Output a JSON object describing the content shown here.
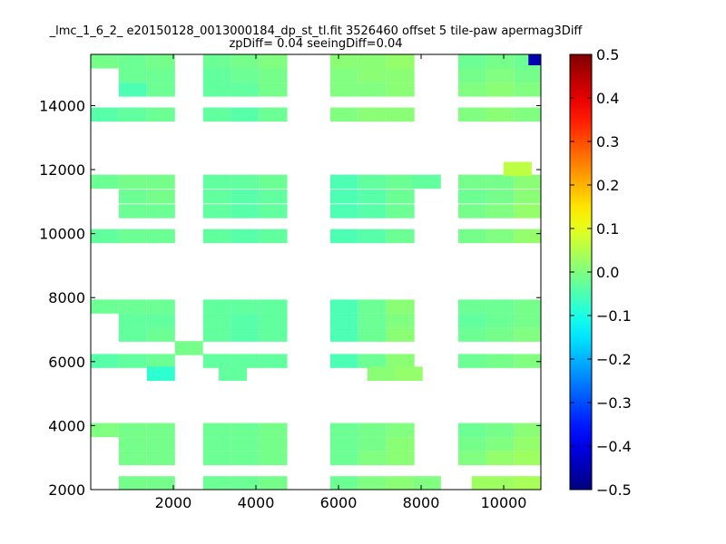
{
  "chart_data": {
    "type": "heatmap",
    "title_line1": "_lmc_1_6_2_ e20150128_0013000184_dp_st_tl.fit 3526460 offset 5 tile-paw apermag3Diff",
    "title_line2": "zpDiff= 0.04 seeingDiff=0.04",
    "xlabel": "",
    "ylabel": "",
    "xlim": [
      0,
      10900
    ],
    "ylim": [
      2000,
      15600
    ],
    "x_ticks": [
      2000,
      4000,
      6000,
      8000,
      10000
    ],
    "x_tick_labels": [
      "2000",
      "4000",
      "6000",
      "8000",
      "10000"
    ],
    "y_ticks": [
      2000,
      4000,
      6000,
      8000,
      10000,
      12000,
      14000
    ],
    "y_tick_labels": [
      "2000",
      "4000",
      "6000",
      "8000",
      "10000",
      "12000",
      "14000"
    ],
    "colormap": "jet",
    "colorbar": {
      "range": [
        -0.5,
        0.5
      ],
      "ticks": [
        0.5,
        0.4,
        0.3,
        0.2,
        0.1,
        0.0,
        -0.1,
        -0.2,
        -0.3,
        -0.4,
        -0.5
      ],
      "tick_labels": [
        "0.5",
        "0.4",
        "0.3",
        "0.2",
        "0.1",
        "0.0",
        "−0.1",
        "−0.2",
        "−0.3",
        "−0.4",
        "−0.5"
      ]
    },
    "cell_size": [
      680,
      440
    ],
    "cells": [
      {
        "x": 0,
        "y": 15160,
        "v": -0.01
      },
      {
        "x": 680,
        "y": 15160,
        "v": -0.02
      },
      {
        "x": 1360,
        "y": 15160,
        "v": -0.01
      },
      {
        "x": 680,
        "y": 14720,
        "v": -0.02
      },
      {
        "x": 1360,
        "y": 14720,
        "v": -0.02
      },
      {
        "x": 680,
        "y": 14280,
        "v": -0.05
      },
      {
        "x": 1360,
        "y": 14280,
        "v": -0.02
      },
      {
        "x": 0,
        "y": 13500,
        "v": -0.04
      },
      {
        "x": 680,
        "y": 13500,
        "v": -0.03
      },
      {
        "x": 1360,
        "y": 13500,
        "v": -0.02
      },
      {
        "x": 2720,
        "y": 15160,
        "v": -0.02
      },
      {
        "x": 3400,
        "y": 15160,
        "v": -0.01
      },
      {
        "x": 4080,
        "y": 15160,
        "v": 0.0
      },
      {
        "x": 2720,
        "y": 14720,
        "v": -0.03
      },
      {
        "x": 3400,
        "y": 14720,
        "v": -0.02
      },
      {
        "x": 4080,
        "y": 14720,
        "v": -0.01
      },
      {
        "x": 2720,
        "y": 14280,
        "v": -0.03
      },
      {
        "x": 3400,
        "y": 14280,
        "v": -0.03
      },
      {
        "x": 4080,
        "y": 14280,
        "v": -0.01
      },
      {
        "x": 2720,
        "y": 13500,
        "v": -0.03
      },
      {
        "x": 3400,
        "y": 13500,
        "v": -0.04
      },
      {
        "x": 4080,
        "y": 13500,
        "v": -0.02
      },
      {
        "x": 5800,
        "y": 15160,
        "v": 0.01
      },
      {
        "x": 6480,
        "y": 15160,
        "v": 0.01
      },
      {
        "x": 7160,
        "y": 15160,
        "v": 0.02
      },
      {
        "x": 5800,
        "y": 14720,
        "v": 0.0
      },
      {
        "x": 6480,
        "y": 14720,
        "v": 0.01
      },
      {
        "x": 7160,
        "y": 14720,
        "v": 0.01
      },
      {
        "x": 5800,
        "y": 14280,
        "v": 0.0
      },
      {
        "x": 6480,
        "y": 14280,
        "v": 0.0
      },
      {
        "x": 7160,
        "y": 14280,
        "v": 0.01
      },
      {
        "x": 5800,
        "y": 13500,
        "v": 0.0
      },
      {
        "x": 6480,
        "y": 13500,
        "v": 0.01
      },
      {
        "x": 7160,
        "y": 13500,
        "v": 0.01
      },
      {
        "x": 8900,
        "y": 15160,
        "v": -0.02
      },
      {
        "x": 9580,
        "y": 15160,
        "v": -0.01
      },
      {
        "x": 10260,
        "y": 15160,
        "v": -0.02
      },
      {
        "x": 8900,
        "y": 14720,
        "v": -0.01
      },
      {
        "x": 9580,
        "y": 14720,
        "v": 0.0
      },
      {
        "x": 10260,
        "y": 14720,
        "v": -0.01
      },
      {
        "x": 8900,
        "y": 14280,
        "v": 0.0
      },
      {
        "x": 9580,
        "y": 14280,
        "v": 0.01
      },
      {
        "x": 10260,
        "y": 14280,
        "v": 0.0
      },
      {
        "x": 8900,
        "y": 13500,
        "v": 0.0
      },
      {
        "x": 9580,
        "y": 13500,
        "v": 0.01
      },
      {
        "x": 10260,
        "y": 13500,
        "v": 0.0
      },
      {
        "x": 10600,
        "y": 15260,
        "v": -0.45
      },
      {
        "x": 0,
        "y": 11400,
        "v": -0.02
      },
      {
        "x": 680,
        "y": 11400,
        "v": -0.01
      },
      {
        "x": 1360,
        "y": 11400,
        "v": -0.01
      },
      {
        "x": 680,
        "y": 10940,
        "v": -0.02
      },
      {
        "x": 1360,
        "y": 10940,
        "v": -0.01
      },
      {
        "x": 680,
        "y": 10480,
        "v": -0.02
      },
      {
        "x": 1360,
        "y": 10480,
        "v": -0.02
      },
      {
        "x": 0,
        "y": 9700,
        "v": -0.03
      },
      {
        "x": 680,
        "y": 9700,
        "v": -0.02
      },
      {
        "x": 1360,
        "y": 9700,
        "v": -0.02
      },
      {
        "x": 2720,
        "y": 11400,
        "v": -0.03
      },
      {
        "x": 3400,
        "y": 11400,
        "v": -0.03
      },
      {
        "x": 4080,
        "y": 11400,
        "v": -0.02
      },
      {
        "x": 2720,
        "y": 10940,
        "v": -0.03
      },
      {
        "x": 3400,
        "y": 10940,
        "v": -0.04
      },
      {
        "x": 4080,
        "y": 10940,
        "v": -0.03
      },
      {
        "x": 2720,
        "y": 10480,
        "v": -0.03
      },
      {
        "x": 3400,
        "y": 10480,
        "v": -0.04
      },
      {
        "x": 4080,
        "y": 10480,
        "v": -0.03
      },
      {
        "x": 2720,
        "y": 9700,
        "v": -0.03
      },
      {
        "x": 3400,
        "y": 9700,
        "v": -0.04
      },
      {
        "x": 4080,
        "y": 9700,
        "v": -0.03
      },
      {
        "x": 5800,
        "y": 11400,
        "v": -0.05
      },
      {
        "x": 6480,
        "y": 11400,
        "v": -0.03
      },
      {
        "x": 7160,
        "y": 11400,
        "v": -0.02
      },
      {
        "x": 5800,
        "y": 10940,
        "v": -0.05
      },
      {
        "x": 6480,
        "y": 10940,
        "v": -0.04
      },
      {
        "x": 7160,
        "y": 10940,
        "v": -0.02
      },
      {
        "x": 5800,
        "y": 10480,
        "v": -0.05
      },
      {
        "x": 6480,
        "y": 10480,
        "v": -0.04
      },
      {
        "x": 7160,
        "y": 10480,
        "v": -0.02
      },
      {
        "x": 5800,
        "y": 9700,
        "v": -0.05
      },
      {
        "x": 6480,
        "y": 9700,
        "v": -0.04
      },
      {
        "x": 7160,
        "y": 9700,
        "v": -0.02
      },
      {
        "x": 7800,
        "y": 11400,
        "v": -0.03
      },
      {
        "x": 8900,
        "y": 11400,
        "v": -0.01
      },
      {
        "x": 9580,
        "y": 11400,
        "v": -0.01
      },
      {
        "x": 10260,
        "y": 11400,
        "v": 0.01
      },
      {
        "x": 8900,
        "y": 10940,
        "v": -0.02
      },
      {
        "x": 9580,
        "y": 10940,
        "v": -0.01
      },
      {
        "x": 10260,
        "y": 10940,
        "v": 0.01
      },
      {
        "x": 8900,
        "y": 10480,
        "v": -0.01
      },
      {
        "x": 9580,
        "y": 10480,
        "v": 0.0
      },
      {
        "x": 10260,
        "y": 10480,
        "v": 0.02
      },
      {
        "x": 8900,
        "y": 9700,
        "v": -0.01
      },
      {
        "x": 9580,
        "y": 9700,
        "v": 0.0
      },
      {
        "x": 10260,
        "y": 9700,
        "v": 0.02
      },
      {
        "x": 10000,
        "y": 11800,
        "v": 0.06
      },
      {
        "x": 0,
        "y": 7500,
        "v": -0.02
      },
      {
        "x": 680,
        "y": 7500,
        "v": -0.02
      },
      {
        "x": 1360,
        "y": 7500,
        "v": -0.02
      },
      {
        "x": 680,
        "y": 7060,
        "v": -0.03
      },
      {
        "x": 1360,
        "y": 7060,
        "v": -0.03
      },
      {
        "x": 680,
        "y": 6620,
        "v": -0.03
      },
      {
        "x": 1360,
        "y": 6620,
        "v": -0.02
      },
      {
        "x": 0,
        "y": 5800,
        "v": -0.04
      },
      {
        "x": 680,
        "y": 5800,
        "v": -0.03
      },
      {
        "x": 1360,
        "y": 5800,
        "v": -0.02
      },
      {
        "x": 2040,
        "y": 6200,
        "v": -0.01
      },
      {
        "x": 1360,
        "y": 5400,
        "v": -0.08
      },
      {
        "x": 2720,
        "y": 7500,
        "v": -0.03
      },
      {
        "x": 3400,
        "y": 7500,
        "v": -0.03
      },
      {
        "x": 4080,
        "y": 7500,
        "v": -0.03
      },
      {
        "x": 2720,
        "y": 7060,
        "v": -0.03
      },
      {
        "x": 3400,
        "y": 7060,
        "v": -0.04
      },
      {
        "x": 4080,
        "y": 7060,
        "v": -0.03
      },
      {
        "x": 2720,
        "y": 6620,
        "v": -0.03
      },
      {
        "x": 3400,
        "y": 6620,
        "v": -0.04
      },
      {
        "x": 4080,
        "y": 6620,
        "v": -0.03
      },
      {
        "x": 2720,
        "y": 5800,
        "v": -0.03
      },
      {
        "x": 3400,
        "y": 5800,
        "v": -0.03
      },
      {
        "x": 4080,
        "y": 5800,
        "v": -0.03
      },
      {
        "x": 3100,
        "y": 5400,
        "v": -0.03
      },
      {
        "x": 5800,
        "y": 7500,
        "v": -0.05
      },
      {
        "x": 6480,
        "y": 7500,
        "v": -0.02
      },
      {
        "x": 7160,
        "y": 7500,
        "v": 0.01
      },
      {
        "x": 5800,
        "y": 7060,
        "v": -0.05
      },
      {
        "x": 6480,
        "y": 7060,
        "v": -0.02
      },
      {
        "x": 7160,
        "y": 7060,
        "v": 0.0
      },
      {
        "x": 5800,
        "y": 6620,
        "v": -0.05
      },
      {
        "x": 6480,
        "y": 6620,
        "v": -0.02
      },
      {
        "x": 7160,
        "y": 6620,
        "v": 0.01
      },
      {
        "x": 5800,
        "y": 5800,
        "v": -0.05
      },
      {
        "x": 6480,
        "y": 5800,
        "v": -0.02
      },
      {
        "x": 7160,
        "y": 5800,
        "v": 0.01
      },
      {
        "x": 6700,
        "y": 5400,
        "v": 0.01
      },
      {
        "x": 7360,
        "y": 5400,
        "v": 0.02
      },
      {
        "x": 8900,
        "y": 7500,
        "v": -0.02
      },
      {
        "x": 9580,
        "y": 7500,
        "v": -0.02
      },
      {
        "x": 10260,
        "y": 7500,
        "v": -0.01
      },
      {
        "x": 8900,
        "y": 7060,
        "v": -0.03
      },
      {
        "x": 9580,
        "y": 7060,
        "v": -0.02
      },
      {
        "x": 10260,
        "y": 7060,
        "v": -0.01
      },
      {
        "x": 8900,
        "y": 6620,
        "v": -0.02
      },
      {
        "x": 9580,
        "y": 6620,
        "v": -0.01
      },
      {
        "x": 10260,
        "y": 6620,
        "v": 0.0
      },
      {
        "x": 8900,
        "y": 5800,
        "v": -0.02
      },
      {
        "x": 9580,
        "y": 5800,
        "v": -0.01
      },
      {
        "x": 10260,
        "y": 5800,
        "v": 0.0
      },
      {
        "x": 0,
        "y": 3640,
        "v": 0.0
      },
      {
        "x": 680,
        "y": 3640,
        "v": -0.01
      },
      {
        "x": 1360,
        "y": 3640,
        "v": -0.01
      },
      {
        "x": 680,
        "y": 3200,
        "v": -0.01
      },
      {
        "x": 1360,
        "y": 3200,
        "v": -0.01
      },
      {
        "x": 680,
        "y": 2760,
        "v": -0.01
      },
      {
        "x": 1360,
        "y": 2760,
        "v": -0.01
      },
      {
        "x": 680,
        "y": 1980,
        "v": -0.01
      },
      {
        "x": 1360,
        "y": 1980,
        "v": -0.01
      },
      {
        "x": 2720,
        "y": 3640,
        "v": -0.02
      },
      {
        "x": 3400,
        "y": 3640,
        "v": -0.02
      },
      {
        "x": 4080,
        "y": 3640,
        "v": -0.01
      },
      {
        "x": 2720,
        "y": 3200,
        "v": -0.02
      },
      {
        "x": 3400,
        "y": 3200,
        "v": -0.02
      },
      {
        "x": 4080,
        "y": 3200,
        "v": -0.01
      },
      {
        "x": 2720,
        "y": 2760,
        "v": -0.02
      },
      {
        "x": 3400,
        "y": 2760,
        "v": -0.02
      },
      {
        "x": 4080,
        "y": 2760,
        "v": -0.01
      },
      {
        "x": 2720,
        "y": 1980,
        "v": -0.02
      },
      {
        "x": 3400,
        "y": 1980,
        "v": -0.02
      },
      {
        "x": 4080,
        "y": 1980,
        "v": -0.01
      },
      {
        "x": 5800,
        "y": 3640,
        "v": -0.02
      },
      {
        "x": 6480,
        "y": 3640,
        "v": -0.01
      },
      {
        "x": 7160,
        "y": 3640,
        "v": 0.0
      },
      {
        "x": 5800,
        "y": 3200,
        "v": -0.02
      },
      {
        "x": 6480,
        "y": 3200,
        "v": -0.01
      },
      {
        "x": 7160,
        "y": 3200,
        "v": 0.01
      },
      {
        "x": 5800,
        "y": 2760,
        "v": -0.02
      },
      {
        "x": 6480,
        "y": 2760,
        "v": 0.0
      },
      {
        "x": 7160,
        "y": 2760,
        "v": 0.01
      },
      {
        "x": 5800,
        "y": 1980,
        "v": -0.02
      },
      {
        "x": 6480,
        "y": 1980,
        "v": 0.0
      },
      {
        "x": 7160,
        "y": 1980,
        "v": 0.01
      },
      {
        "x": 7800,
        "y": 1980,
        "v": 0.0
      },
      {
        "x": 8900,
        "y": 3640,
        "v": -0.02
      },
      {
        "x": 9580,
        "y": 3640,
        "v": -0.01
      },
      {
        "x": 10260,
        "y": 3640,
        "v": 0.01
      },
      {
        "x": 8900,
        "y": 3200,
        "v": -0.01
      },
      {
        "x": 9580,
        "y": 3200,
        "v": 0.0
      },
      {
        "x": 10260,
        "y": 3200,
        "v": 0.02
      },
      {
        "x": 8900,
        "y": 2760,
        "v": 0.0
      },
      {
        "x": 9580,
        "y": 2760,
        "v": 0.02
      },
      {
        "x": 10260,
        "y": 2760,
        "v": 0.03
      },
      {
        "x": 9220,
        "y": 1980,
        "v": 0.03
      },
      {
        "x": 9900,
        "y": 1980,
        "v": 0.03
      },
      {
        "x": 10260,
        "y": 1980,
        "v": 0.04
      }
    ]
  }
}
